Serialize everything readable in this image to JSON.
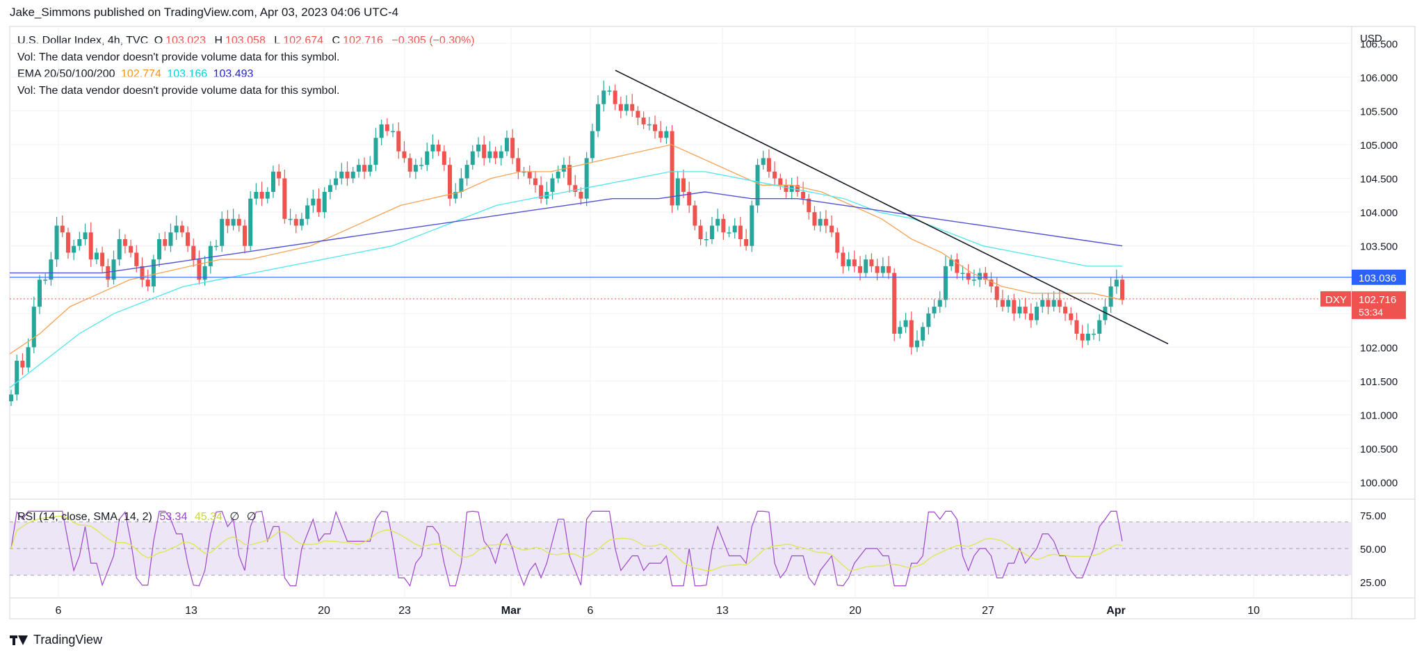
{
  "header": {
    "published": "Jake_Simmons published on TradingView.com, Apr 03, 2023 04:06 UTC-4"
  },
  "legend": {
    "symbol": "U.S. Dollar Index, 4h, TVC",
    "o_label": "O",
    "o_val": "103.023",
    "h_label": "H",
    "h_val": "103.058",
    "l_label": "L",
    "l_val": "102.674",
    "c_label": "C",
    "c_val": "102.716",
    "chg": "−0.305 (−0.30%)",
    "vol_note": "Vol: The data vendor doesn't provide volume data for this symbol.",
    "ema_label": "EMA 20/50/100/200",
    "ema20": "102.774",
    "ema50": "103.166",
    "ema100": "103.493",
    "vol_note2": "Vol: The data vendor doesn't provide volume data for this symbol."
  },
  "rsi_legend": {
    "label": "RSI (14, close, SMA, 14, 2)",
    "rsi": "53.34",
    "sma": "45.34",
    "s1": "∅",
    "s2": "∅"
  },
  "footer": {
    "brand": "TradingView"
  },
  "colors": {
    "up": "#26a69a",
    "down": "#ef5350",
    "ema20": "#f7a254",
    "ema50": "#4ee6ef",
    "ema100": "#5150d6",
    "hline": "#2962ff",
    "rsi": "#9c45c8",
    "rsi_sma": "#dce84a",
    "rsi_band": "#ede6f7",
    "grid": "#eef0f3"
  },
  "chart_data": {
    "type": "candlestick",
    "title": "U.S. Dollar Index, 4h, TVC",
    "y_axis_label": "USD",
    "ylim": [
      99.75,
      106.75
    ],
    "yticks": [
      "106.500",
      "106.000",
      "105.500",
      "105.000",
      "104.500",
      "104.000",
      "103.500",
      "103.000",
      "102.500",
      "102.000",
      "101.500",
      "101.000",
      "100.500",
      "100.000"
    ],
    "xticks": [
      "6",
      "13",
      "20",
      "23",
      "Mar",
      "6",
      "13",
      "20",
      "27",
      "Apr",
      "10"
    ],
    "symbol_tag": "DXY",
    "last_price": "102.716",
    "countdown": "53:34",
    "horizontal_line": {
      "value": 103.036,
      "label": "103.036"
    },
    "trendline": {
      "from_date": "Mar 08",
      "from_value": 106.1,
      "to_date": "Apr 05",
      "to_value": 102.05
    },
    "series_close": [
      101.3,
      101.8,
      101.7,
      102.0,
      102.6,
      103.0,
      103.0,
      103.3,
      103.8,
      103.7,
      103.4,
      103.5,
      103.6,
      103.7,
      103.3,
      103.4,
      103.2,
      103.0,
      103.3,
      103.6,
      103.5,
      103.4,
      103.2,
      103.0,
      102.9,
      103.3,
      103.6,
      103.5,
      103.7,
      103.8,
      103.7,
      103.5,
      103.3,
      103.0,
      103.2,
      103.5,
      103.5,
      103.9,
      103.8,
      103.9,
      103.8,
      103.5,
      104.2,
      104.3,
      104.2,
      104.3,
      104.6,
      104.5,
      103.9,
      103.9,
      103.8,
      103.9,
      104.1,
      104.2,
      104.0,
      104.3,
      104.4,
      104.5,
      104.6,
      104.5,
      104.6,
      104.7,
      104.6,
      104.7,
      105.1,
      105.3,
      105.2,
      105.2,
      104.9,
      104.8,
      104.6,
      104.7,
      104.7,
      104.9,
      105.0,
      104.9,
      104.7,
      104.2,
      104.3,
      104.5,
      104.7,
      104.9,
      105.0,
      104.8,
      104.9,
      104.8,
      104.9,
      105.1,
      104.8,
      104.6,
      104.6,
      104.5,
      104.4,
      104.2,
      104.3,
      104.5,
      104.6,
      104.7,
      104.4,
      104.3,
      104.2,
      104.8,
      105.2,
      105.6,
      105.8,
      105.8,
      105.6,
      105.5,
      105.6,
      105.5,
      105.4,
      105.3,
      105.3,
      105.2,
      105.1,
      105.2,
      104.1,
      104.5,
      104.3,
      104.1,
      103.8,
      103.6,
      103.6,
      103.8,
      103.9,
      103.7,
      103.7,
      103.8,
      103.6,
      103.5,
      104.1,
      104.7,
      104.8,
      104.6,
      104.5,
      104.4,
      104.3,
      104.4,
      104.3,
      104.2,
      104.0,
      103.8,
      103.9,
      103.8,
      103.7,
      103.4,
      103.2,
      103.3,
      103.2,
      103.1,
      103.3,
      103.2,
      103.1,
      103.2,
      103.1,
      102.2,
      102.3,
      102.4,
      102.0,
      102.1,
      102.3,
      102.5,
      102.6,
      102.7,
      103.2,
      103.3,
      103.1,
      103.1,
      103.0,
      103.0,
      103.1,
      103.0,
      102.9,
      102.7,
      102.6,
      102.7,
      102.5,
      102.6,
      102.5,
      102.4,
      102.6,
      102.7,
      102.6,
      102.7,
      102.6,
      102.5,
      102.4,
      102.2,
      102.1,
      102.2,
      102.2,
      102.4,
      102.6,
      102.9,
      103.0,
      102.7
    ],
    "ema20": [
      101.9,
      102.2,
      102.6,
      102.8,
      103.0,
      103.1,
      103.2,
      103.3,
      103.3,
      103.4,
      103.5,
      103.7,
      103.9,
      104.1,
      104.2,
      104.3,
      104.5,
      104.6,
      104.6,
      104.7,
      104.8,
      104.9,
      105.0,
      104.8,
      104.6,
      104.4,
      104.4,
      104.3,
      104.1,
      103.9,
      103.6,
      103.4,
      103.1,
      102.9,
      102.8,
      102.8,
      102.8,
      102.7
    ],
    "ema50": [
      101.4,
      101.8,
      102.2,
      102.5,
      102.7,
      102.9,
      103.0,
      103.1,
      103.2,
      103.3,
      103.4,
      103.5,
      103.7,
      103.9,
      104.1,
      104.2,
      104.3,
      104.4,
      104.5,
      104.6,
      104.6,
      104.5,
      104.4,
      104.3,
      104.2,
      104.0,
      103.9,
      103.7,
      103.5,
      103.4,
      103.3,
      103.2,
      103.2
    ],
    "ema100": [
      103.1,
      103.1,
      103.1,
      103.2,
      103.3,
      103.4,
      103.5,
      103.6,
      103.7,
      103.8,
      103.9,
      104.0,
      104.1,
      104.2,
      104.2,
      104.3,
      104.2,
      104.2,
      104.1,
      104.0,
      103.9,
      103.8,
      103.7,
      103.6,
      103.5
    ],
    "rsi": {
      "ylim": [
        15,
        85
      ],
      "yticks": [
        "75.00",
        "50.00",
        "25.00"
      ],
      "band": [
        30,
        70
      ]
    }
  }
}
